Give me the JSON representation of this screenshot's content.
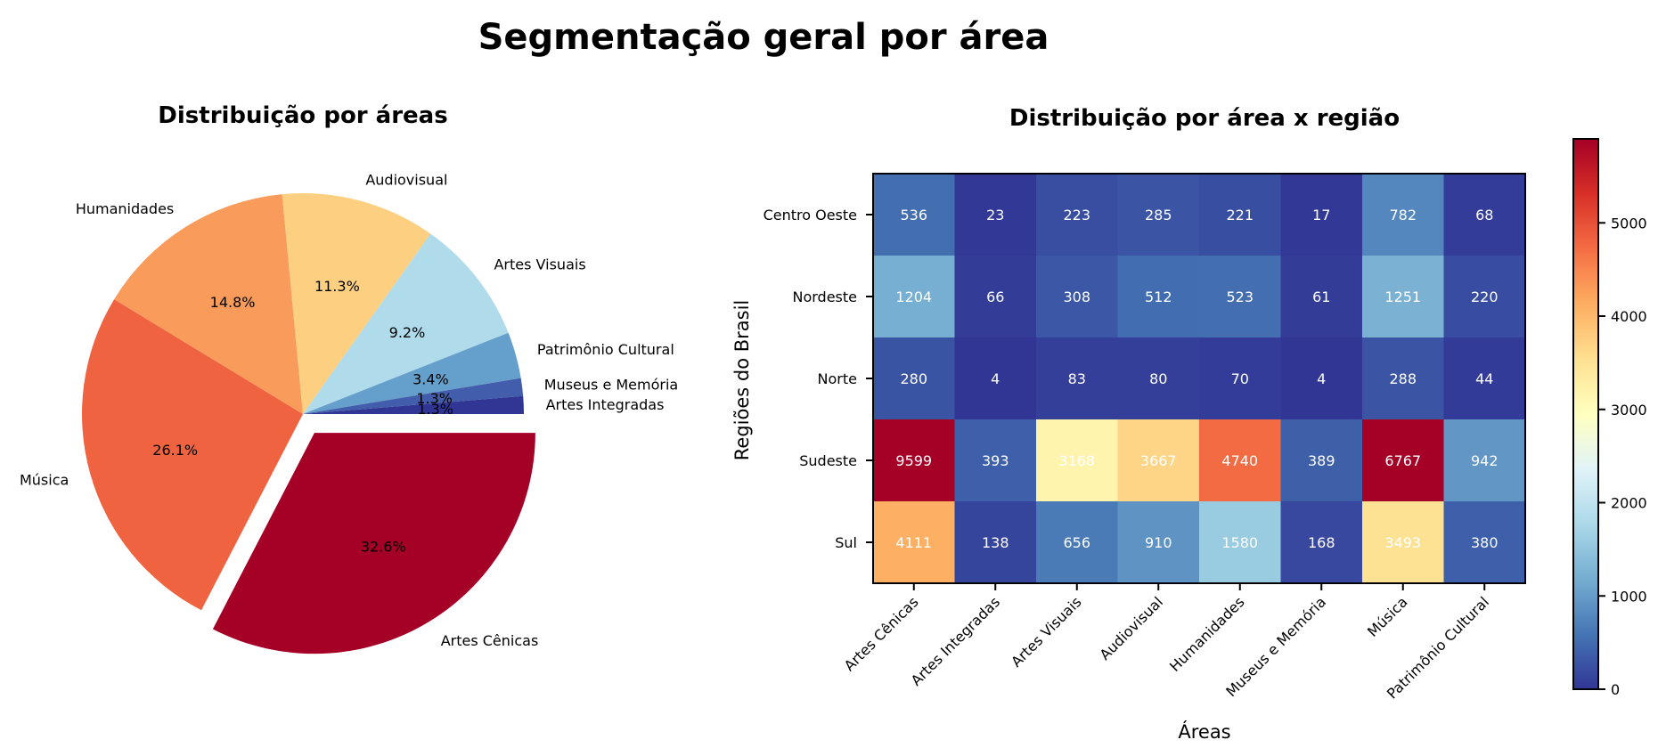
{
  "suptitle": "Segmentação geral por área",
  "chart_data": [
    {
      "type": "pie",
      "title": "Distribuição por áreas",
      "slices": [
        {
          "label": "Artes Cênicas",
          "value": 32.6,
          "pct": "32.6%",
          "color": "#a50026",
          "exploded": true
        },
        {
          "label": "Música",
          "value": 26.1,
          "pct": "26.1%",
          "color": "#ef6340",
          "exploded": false
        },
        {
          "label": "Humanidades",
          "value": 14.8,
          "pct": "14.8%",
          "color": "#f99b5b",
          "exploded": false
        },
        {
          "label": "Audiovisual",
          "value": 11.3,
          "pct": "11.3%",
          "color": "#fdcf81",
          "exploded": false
        },
        {
          "label": "Artes Visuais",
          "value": 9.2,
          "pct": "9.2%",
          "color": "#afdbea",
          "exploded": false
        },
        {
          "label": "Patrimônio Cultural",
          "value": 3.4,
          "pct": "3.4%",
          "color": "#659fcb",
          "exploded": false
        },
        {
          "label": "Museus e Memória",
          "value": 1.3,
          "pct": "1.3%",
          "color": "#415dab",
          "exploded": false
        },
        {
          "label": "Artes Integradas",
          "value": 1.3,
          "pct": "1.3%",
          "color": "#313695",
          "exploded": false
        }
      ]
    },
    {
      "type": "heatmap",
      "title": "Distribuição por área x região",
      "xlabel": "Áreas",
      "ylabel": "Regiões do Brasil",
      "x_categories": [
        "Artes Cênicas",
        "Artes Integradas",
        "Artes Visuais",
        "Audiovisual",
        "Humanidades",
        "Museus e Memória",
        "Música",
        "Patrimônio Cultural"
      ],
      "y_categories": [
        "Centro Oeste",
        "Nordeste",
        "Norte",
        "Sudeste",
        "Sul"
      ],
      "values": [
        [
          536,
          23,
          223,
          285,
          221,
          17,
          782,
          68
        ],
        [
          1204,
          66,
          308,
          512,
          523,
          61,
          1251,
          220
        ],
        [
          280,
          4,
          83,
          80,
          70,
          4,
          288,
          44
        ],
        [
          9599,
          393,
          3168,
          3667,
          4740,
          389,
          6767,
          942
        ],
        [
          4111,
          138,
          656,
          910,
          1580,
          168,
          3493,
          380
        ]
      ],
      "colormap": "RdYlBu_r",
      "vmin": 0,
      "vmax": 5900,
      "colorbar_ticks": [
        0,
        1000,
        2000,
        3000,
        4000,
        5000
      ]
    }
  ]
}
